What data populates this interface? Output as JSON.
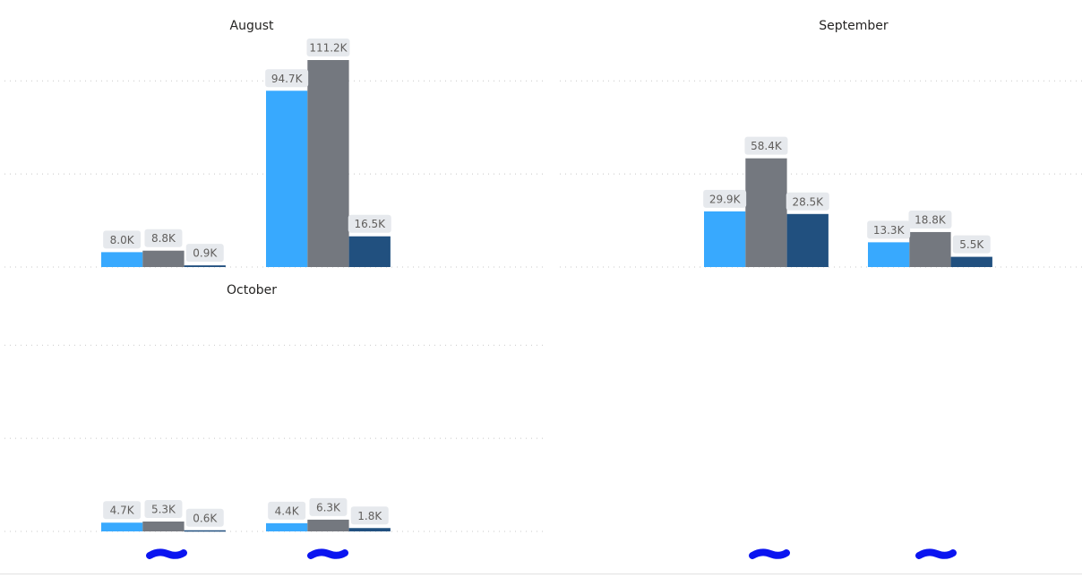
{
  "chart_data": {
    "type": "bar",
    "layout": "small-multiples",
    "categories_redacted": true,
    "series": [
      {
        "color": "#38A9FE"
      },
      {
        "color": "#74787F"
      },
      {
        "color": "#21507F"
      }
    ],
    "ylim": [
      0,
      111200
    ],
    "grid": true,
    "panels": [
      {
        "title": "August",
        "values": [
          [
            8000,
            8800,
            900
          ],
          [
            94700,
            111200,
            16500
          ]
        ],
        "labels": [
          [
            "8.0K",
            "8.8K",
            "0.9K"
          ],
          [
            "94.7K",
            "111.2K",
            "16.5K"
          ]
        ]
      },
      {
        "title": "September",
        "values": [
          [
            29900,
            58400,
            28500
          ],
          [
            13300,
            18800,
            5500
          ]
        ],
        "labels": [
          [
            "29.9K",
            "58.4K",
            "28.5K"
          ],
          [
            "13.3K",
            "18.8K",
            "5.5K"
          ]
        ]
      },
      {
        "title": "October",
        "values": [
          [
            4700,
            5300,
            600
          ],
          [
            4400,
            6300,
            1800
          ]
        ],
        "labels": [
          [
            "4.7K",
            "5.3K",
            "0.6K"
          ],
          [
            "4.4K",
            "6.3K",
            "1.8K"
          ]
        ]
      }
    ],
    "gridlines": [
      50000,
      100000
    ],
    "colors": {
      "label_bg": "#E6E9ED",
      "redaction": "#0A14F0"
    }
  }
}
